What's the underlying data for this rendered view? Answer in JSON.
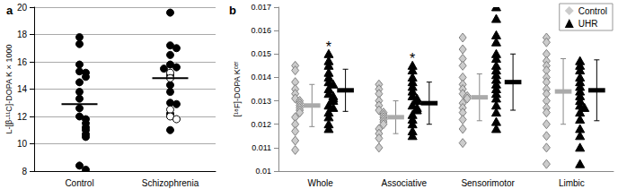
{
  "chart_data": [
    {
      "type": "scatter",
      "panel": "a",
      "ylabel": "L-[β-¹¹C]-DOPA K × 1000",
      "categories": [
        "Control",
        "Schizophrenia"
      ],
      "values": [
        [
          17.8,
          17.3,
          15.8,
          15.3,
          15.2,
          14.9,
          14.5,
          13.8,
          13.3,
          12.6,
          12.0,
          11.8,
          11.5,
          11.2,
          11.0,
          10.7,
          10.5,
          8.4,
          8.1
        ],
        [
          19.6,
          17.2,
          17.0,
          16.5,
          15.8,
          15.6,
          15.5,
          15.0,
          14.3,
          13.8,
          13.0,
          12.9,
          12.2,
          11.0
        ]
      ],
      "open_values": [
        [],
        [
          15.2,
          14.8,
          12.5,
          12.0,
          11.8
        ]
      ],
      "means": [
        12.9,
        14.8
      ],
      "color": "#000000",
      "marker": "circle",
      "ylim": [
        8,
        20
      ],
      "yticks": [
        8,
        10,
        12,
        14,
        16,
        18,
        20
      ],
      "grid": true
    },
    {
      "type": "scatter",
      "panel": "b",
      "ylabel": "[¹⁸F]-DOPA Kᶜᵉʳ",
      "categories": [
        "Whole",
        "Associative",
        "Sensorimotor",
        "Limbic"
      ],
      "series": [
        {
          "name": "Control",
          "color": "#cccccc",
          "marker": "diamond",
          "values": [
            [
              0.0145,
              0.0143,
              0.0138,
              0.0135,
              0.0133,
              0.0131,
              0.013,
              0.0129,
              0.0128,
              0.0127,
              0.0126,
              0.0125,
              0.0123,
              0.012,
              0.0117,
              0.0113,
              0.0109
            ],
            [
              0.0137,
              0.0135,
              0.0133,
              0.013,
              0.0128,
              0.0126,
              0.0125,
              0.0124,
              0.0123,
              0.0122,
              0.0121,
              0.012,
              0.0118,
              0.0116,
              0.0114,
              0.011
            ],
            [
              0.0157,
              0.0152,
              0.0148,
              0.0145,
              0.014,
              0.0137,
              0.0135,
              0.0133,
              0.0132,
              0.0131,
              0.0129,
              0.0127,
              0.0125,
              0.0122,
              0.0118,
              0.0112
            ],
            [
              0.0157,
              0.0155,
              0.015,
              0.0147,
              0.0145,
              0.0143,
              0.014,
              0.0138,
              0.0135,
              0.0133,
              0.013,
              0.0127,
              0.0125,
              0.012,
              0.0115,
              0.011,
              0.0103
            ]
          ],
          "means": [
            0.0128,
            0.0123,
            0.01315,
            0.0134
          ],
          "sd": [
            0.0009,
            0.0007,
            0.001,
            0.0014
          ]
        },
        {
          "name": "UHR",
          "color": "#000000",
          "marker": "triangle",
          "values": [
            [
              0.015,
              0.0147,
              0.0145,
              0.0142,
              0.014,
              0.0138,
              0.0137,
              0.0135,
              0.0133,
              0.0132,
              0.0131,
              0.013,
              0.0128,
              0.0127,
              0.0125,
              0.0123,
              0.012,
              0.0118
            ],
            [
              0.0145,
              0.0143,
              0.014,
              0.0138,
              0.0136,
              0.0134,
              0.0132,
              0.0131,
              0.013,
              0.0128,
              0.0127,
              0.0126,
              0.0124,
              0.0122,
              0.012,
              0.0117,
              0.0115
            ],
            [
              0.017,
              0.0165,
              0.0158,
              0.0155,
              0.015,
              0.0148,
              0.0145,
              0.0143,
              0.0141,
              0.0139,
              0.0137,
              0.0135,
              0.0133,
              0.0131,
              0.0128,
              0.0125,
              0.0121,
              0.0118
            ],
            [
              0.0147,
              0.0145,
              0.0143,
              0.014,
              0.0138,
              0.0136,
              0.0134,
              0.0132,
              0.013,
              0.0128,
              0.0127,
              0.0125,
              0.0122,
              0.0118,
              0.0115,
              0.011,
              0.0103
            ]
          ],
          "means": [
            0.01345,
            0.0129,
            0.0138,
            0.01345
          ],
          "sd": [
            0.0009,
            0.0009,
            0.0012,
            0.0013
          ]
        }
      ],
      "annotations": [
        {
          "category": "Whole",
          "text": "*"
        },
        {
          "category": "Associative",
          "text": "*"
        }
      ],
      "ylim": [
        0.01,
        0.017
      ],
      "yticks": [
        0.01,
        0.011,
        0.012,
        0.013,
        0.014,
        0.015,
        0.016,
        0.017
      ],
      "grid": false,
      "legend": "upper right"
    }
  ]
}
